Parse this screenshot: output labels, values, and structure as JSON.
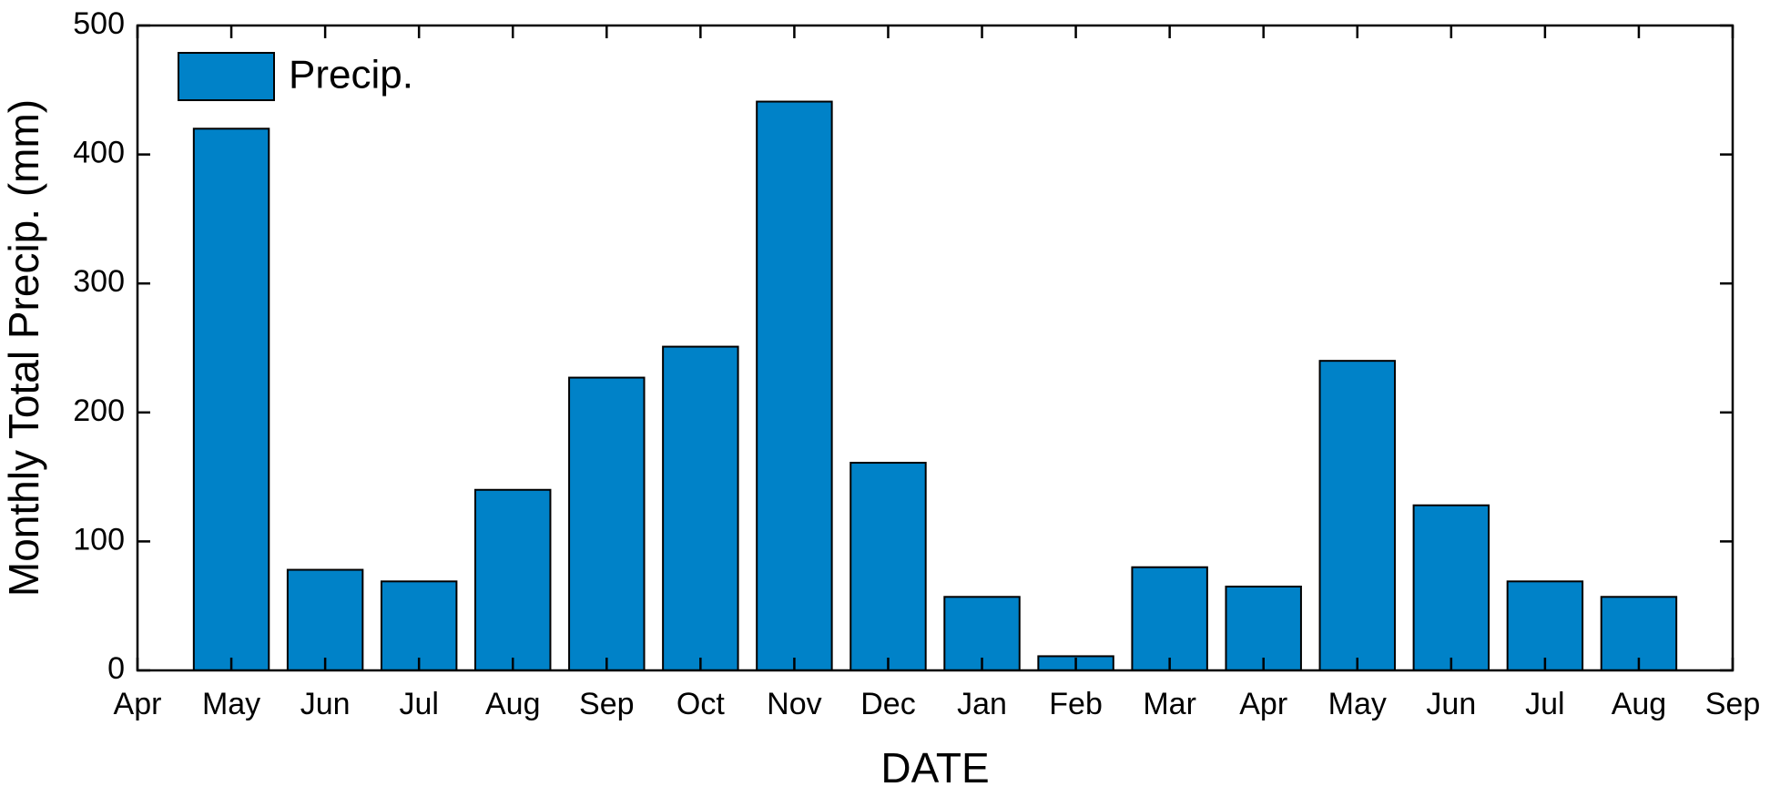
{
  "chart_data": {
    "type": "bar",
    "x_label": "DATE",
    "y_label": "Monthly Total Precip. (mm)",
    "categories": [
      "Apr",
      "May",
      "Jun",
      "Jul",
      "Aug",
      "Sep",
      "Oct",
      "Nov",
      "Dec",
      "Jan",
      "Feb",
      "Mar",
      "Apr",
      "May",
      "Jun",
      "Jul",
      "Aug",
      "Sep"
    ],
    "series": [
      {
        "name": "Precip.",
        "color": "#0082c8",
        "values": [
          null,
          420,
          78,
          69,
          140,
          227,
          251,
          441,
          161,
          57,
          11,
          80,
          65,
          240,
          128,
          69,
          57,
          null
        ]
      }
    ],
    "ylim": [
      0,
      500
    ],
    "yticks": [
      0,
      100,
      200,
      300,
      400,
      500
    ],
    "legend": "upper left"
  }
}
